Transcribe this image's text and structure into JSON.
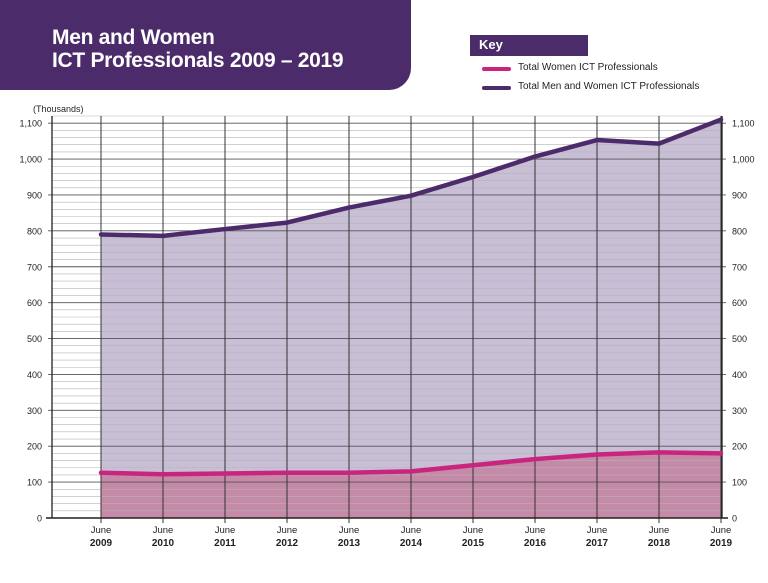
{
  "title": {
    "line1": "Men and Women",
    "line2": "ICT Professionals 2009 – 2019"
  },
  "key": {
    "title": "Key",
    "items": [
      {
        "label": "Total Women ICT Professionals",
        "color": "#c8267e"
      },
      {
        "label": "Total Men and Women ICT Professionals",
        "color": "#4c2b6b"
      }
    ]
  },
  "colors": {
    "banner": "#4c2b6b",
    "women_line": "#c8267e",
    "women_fill": "#c48aa8",
    "total_line": "#4c2b6b",
    "total_fill": "#c8bed6",
    "grid_major": "#555555",
    "grid_minor": "#b5b5b5"
  },
  "chart_data": {
    "type": "area",
    "unit_label": "(Thousands)",
    "x_top_label": "June",
    "categories": [
      "2009",
      "2010",
      "2011",
      "2012",
      "2013",
      "2014",
      "2015",
      "2016",
      "2017",
      "2018",
      "2019"
    ],
    "series": [
      {
        "name": "Total Women ICT Professionals",
        "values": [
          126,
          122,
          124,
          126,
          126,
          130,
          147,
          164,
          177,
          183,
          180
        ]
      },
      {
        "name": "Total Men and Women ICT Professionals",
        "values": [
          790,
          786,
          805,
          823,
          865,
          898,
          950,
          1007,
          1053,
          1043,
          1110
        ]
      }
    ],
    "ylim": [
      0,
      1120
    ],
    "y_ticks": [
      {
        "value": 0,
        "label": "0"
      },
      {
        "value": 100,
        "label": "100"
      },
      {
        "value": 200,
        "label": "200"
      },
      {
        "value": 300,
        "label": "300"
      },
      {
        "value": 400,
        "label": "400"
      },
      {
        "value": 500,
        "label": "500"
      },
      {
        "value": 600,
        "label": "600"
      },
      {
        "value": 700,
        "label": "700"
      },
      {
        "value": 800,
        "label": "800"
      },
      {
        "value": 900,
        "label": "900"
      },
      {
        "value": 1000,
        "label": "1,000"
      },
      {
        "value": 1100,
        "label": "1,100"
      }
    ],
    "minor_step": 20,
    "grid": true,
    "legend_position": "top-right"
  }
}
